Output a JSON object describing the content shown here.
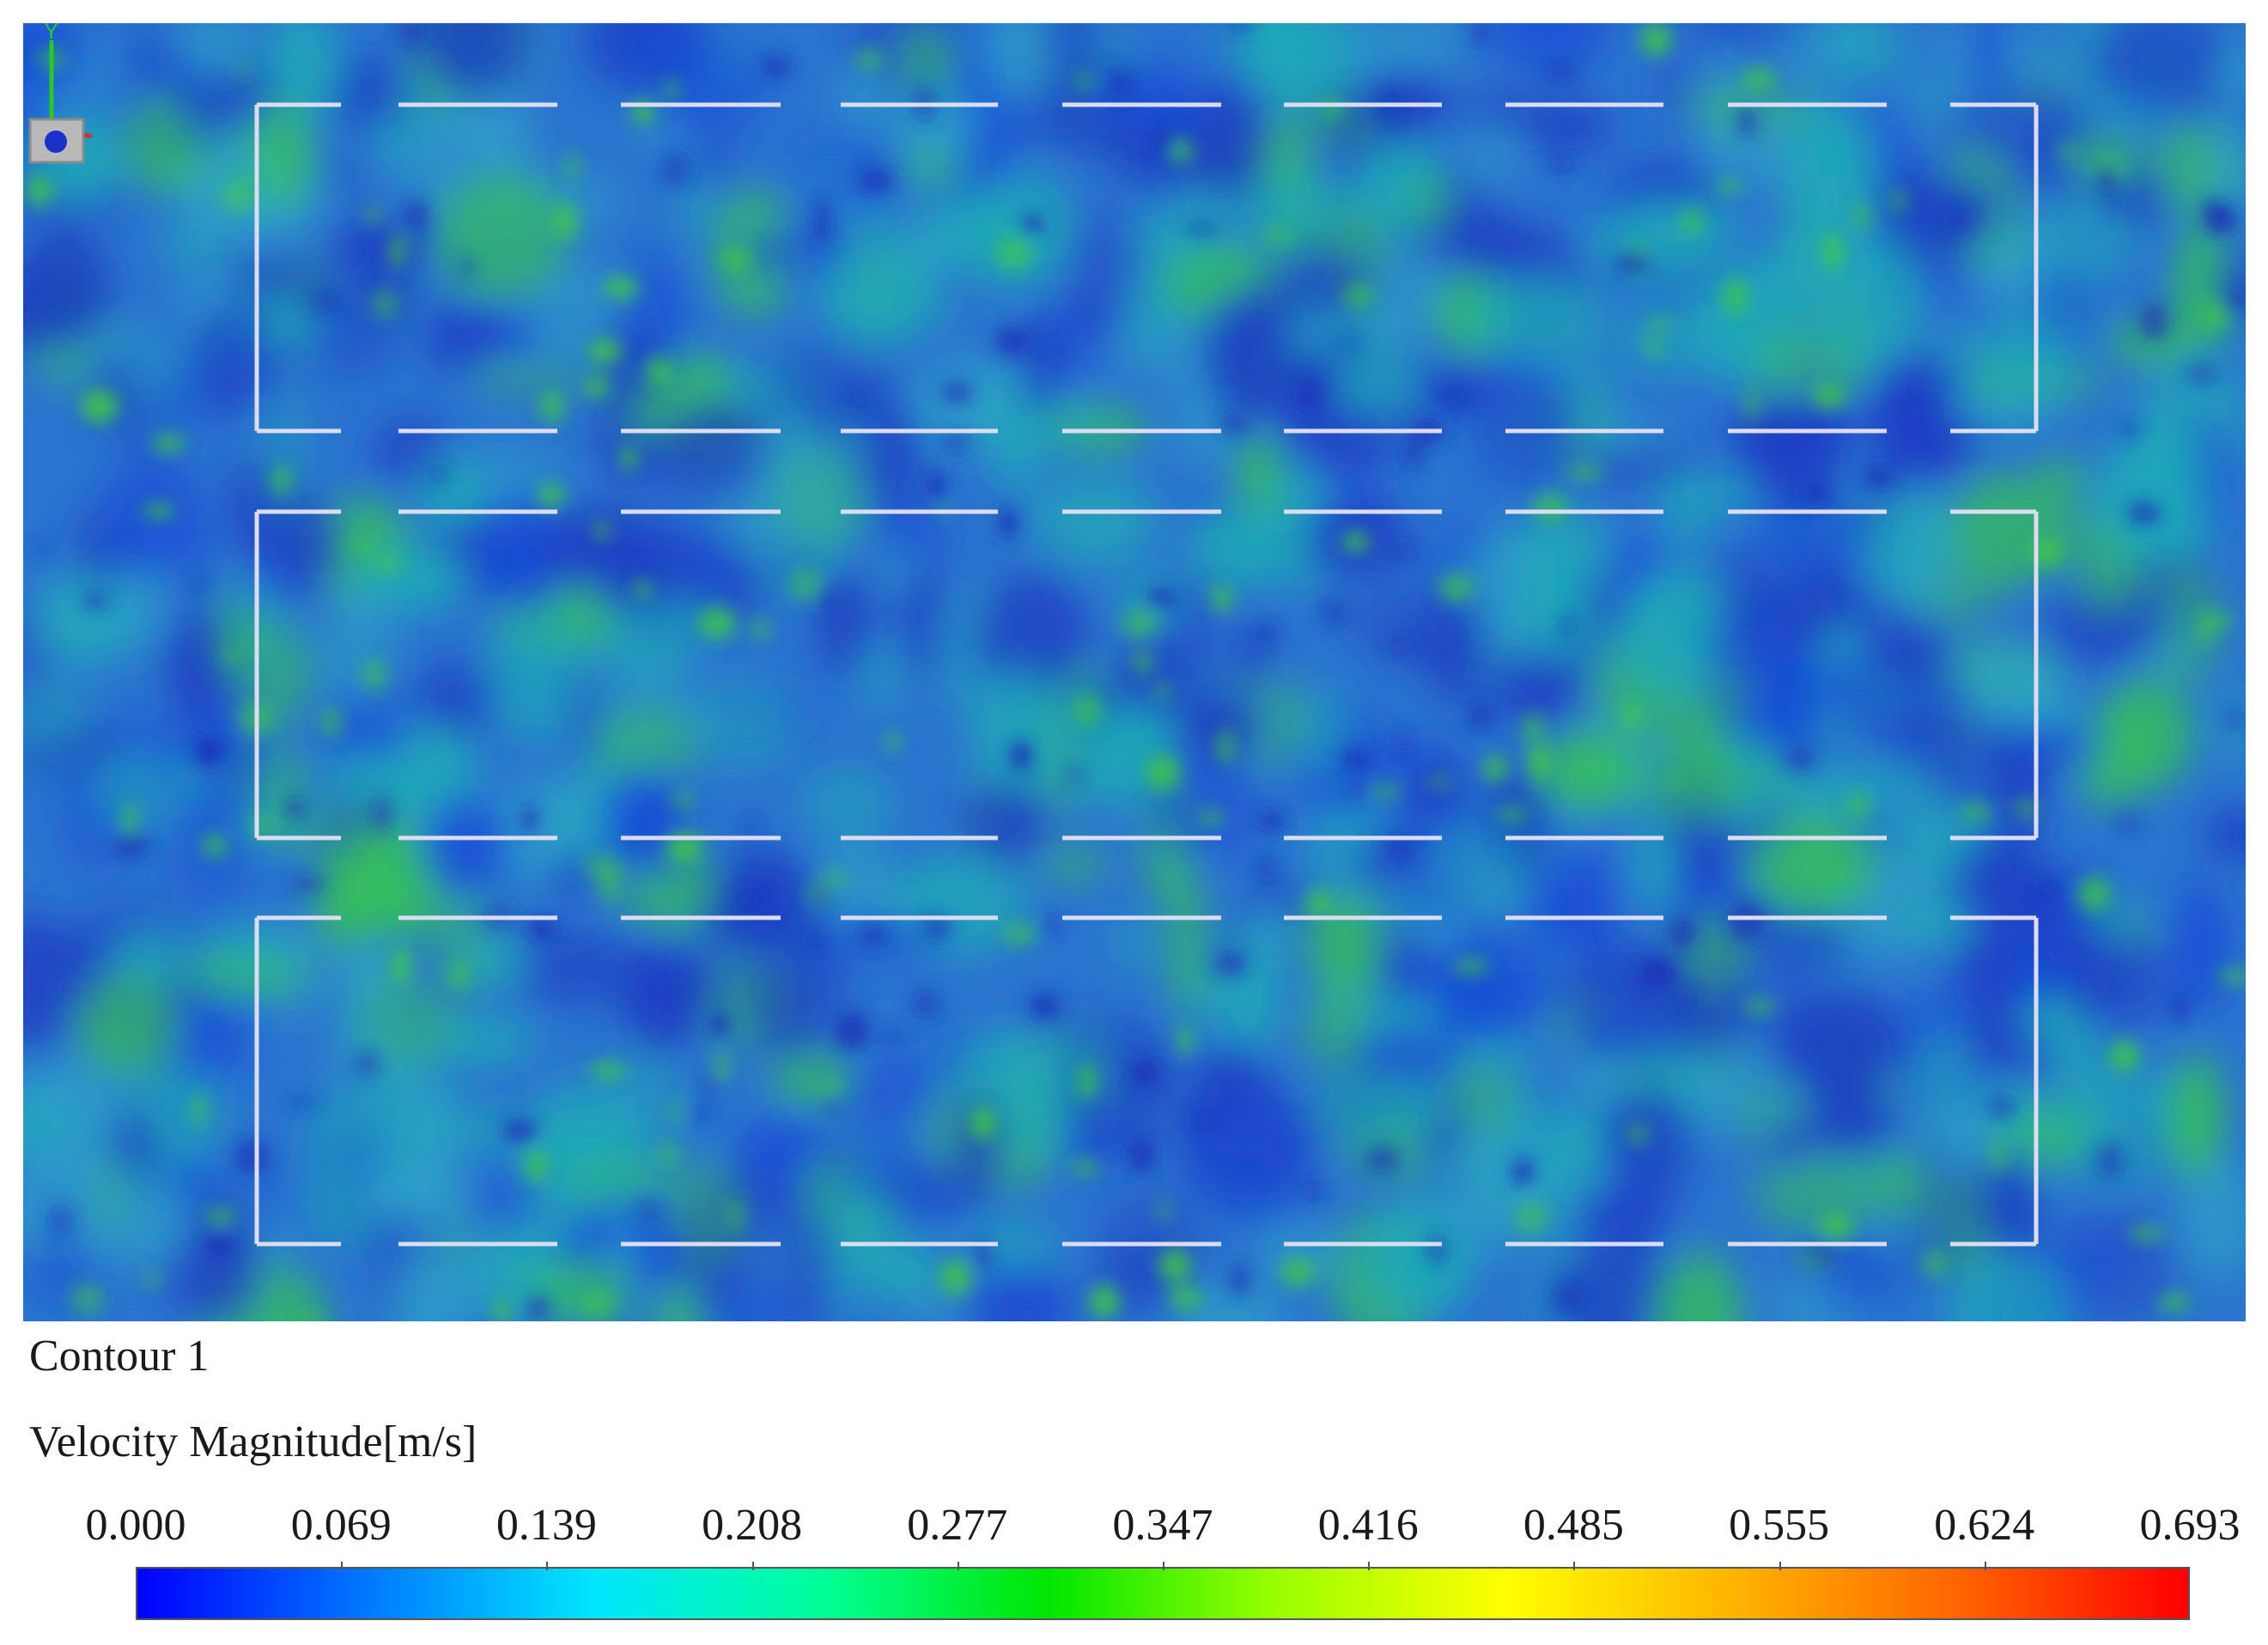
{
  "viewport": {
    "label": "cfd-velocity-contour-view"
  },
  "contour": {
    "title": "Contour 1",
    "variable": "Velocity Magnitude[m/s]"
  },
  "legend": {
    "min": 0.0,
    "max": 0.693,
    "ticks": [
      "0.000",
      "0.069",
      "0.139",
      "0.208",
      "0.277",
      "0.347",
      "0.416",
      "0.485",
      "0.555",
      "0.624",
      "0.693"
    ],
    "colors": [
      "#0000ff",
      "#0078ff",
      "#00e6ff",
      "#00ff9a",
      "#00e600",
      "#9aff00",
      "#ffff00",
      "#ffb400",
      "#ff6400",
      "#ff0000"
    ]
  },
  "axis_triad": {
    "y_label": "Y",
    "icon": "axis-triad-icon"
  },
  "colors": {
    "field_base": "#2a6fcf",
    "field_low": "#1d3fc4",
    "field_mid": "#1fa8b8",
    "field_high": "#35c05a",
    "wall": "#dcdcf0"
  }
}
